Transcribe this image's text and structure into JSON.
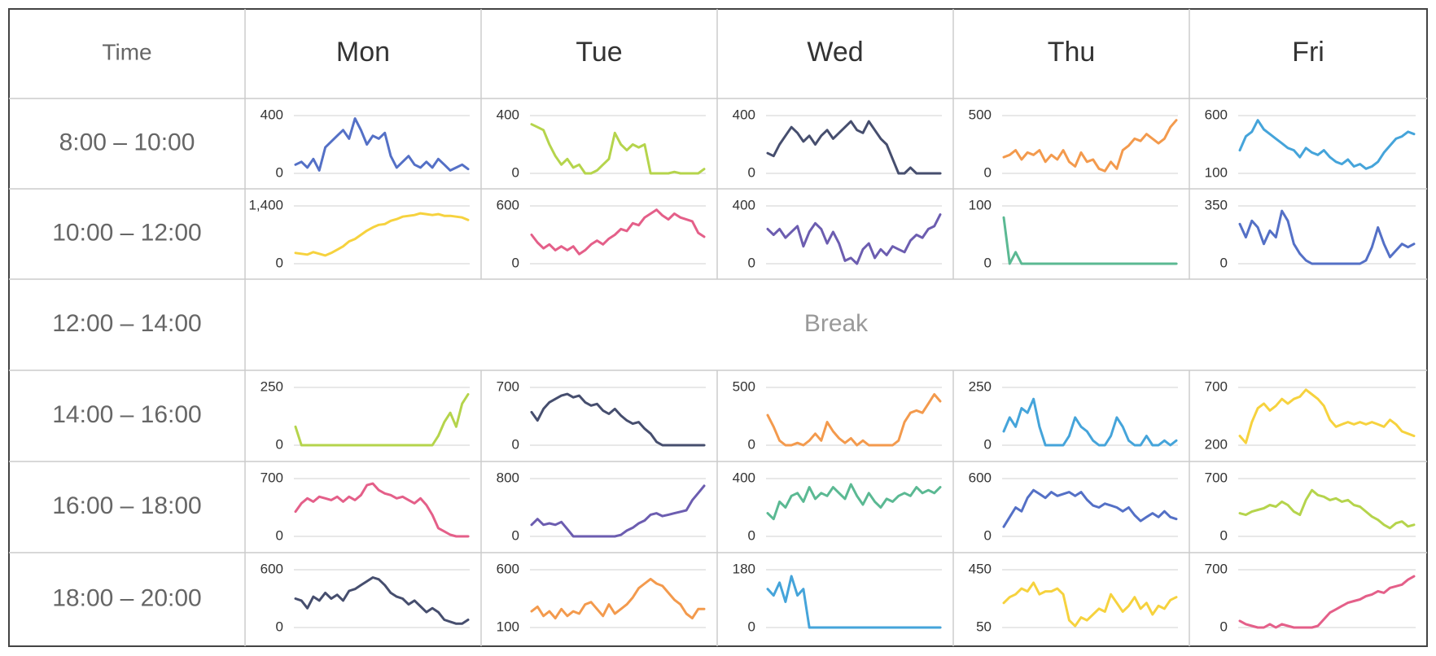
{
  "header": {
    "time": "Time",
    "days": [
      "Mon",
      "Tue",
      "Wed",
      "Thu",
      "Fri"
    ]
  },
  "slots": [
    "8:00 – 10:00",
    "10:00 – 12:00",
    "12:00 – 14:00",
    "14:00 – 16:00",
    "16:00 – 18:00",
    "18:00 – 20:00"
  ],
  "break_label": "Break",
  "break_slot_index": 2,
  "chart_data": {
    "type": "line",
    "layout": "small-multiples grid",
    "grid": "horizontal gridlines at min and max",
    "cells": [
      {
        "day": "Mon",
        "slot": "8:00 – 10:00",
        "color": "#5470c6",
        "ylim": [
          0,
          400
        ],
        "y_tick_labels": [
          "0",
          "400"
        ],
        "values": [
          60,
          80,
          40,
          100,
          20,
          180,
          220,
          260,
          300,
          240,
          380,
          300,
          200,
          260,
          240,
          280,
          120,
          40,
          80,
          120,
          60,
          40,
          80,
          40,
          100,
          60,
          20,
          40,
          60,
          30
        ]
      },
      {
        "day": "Tue",
        "slot": "8:00 – 10:00",
        "color": "#b5d44c",
        "ylim": [
          0,
          400
        ],
        "y_tick_labels": [
          "0",
          "400"
        ],
        "values": [
          340,
          320,
          300,
          200,
          120,
          60,
          100,
          40,
          60,
          0,
          0,
          20,
          60,
          100,
          280,
          200,
          160,
          200,
          180,
          200,
          0,
          0,
          0,
          0,
          10,
          0,
          0,
          0,
          0,
          30
        ]
      },
      {
        "day": "Wed",
        "slot": "8:00 – 10:00",
        "color": "#464e6e",
        "ylim": [
          0,
          400
        ],
        "y_tick_labels": [
          "0",
          "400"
        ],
        "values": [
          140,
          120,
          200,
          260,
          320,
          280,
          220,
          260,
          200,
          260,
          300,
          240,
          280,
          320,
          360,
          300,
          280,
          360,
          300,
          240,
          200,
          100,
          0,
          0,
          40,
          0,
          0,
          0,
          0,
          0
        ]
      },
      {
        "day": "Thu",
        "slot": "8:00 – 10:00",
        "color": "#f39a4d",
        "ylim": [
          0,
          500
        ],
        "y_tick_labels": [
          "0",
          "500"
        ],
        "values": [
          140,
          160,
          200,
          120,
          180,
          160,
          200,
          100,
          160,
          120,
          200,
          100,
          60,
          180,
          100,
          120,
          40,
          20,
          100,
          40,
          200,
          240,
          300,
          280,
          340,
          300,
          260,
          300,
          400,
          460
        ]
      },
      {
        "day": "Fri",
        "slot": "8:00 – 10:00",
        "color": "#45a4da",
        "ylim": [
          100,
          600
        ],
        "y_tick_labels": [
          "100",
          "600"
        ],
        "values": [
          300,
          420,
          460,
          560,
          480,
          440,
          400,
          360,
          320,
          300,
          240,
          320,
          280,
          260,
          300,
          240,
          200,
          180,
          220,
          160,
          180,
          140,
          160,
          200,
          280,
          340,
          400,
          420,
          460,
          440
        ]
      },
      {
        "day": "Mon",
        "slot": "10:00 – 12:00",
        "color": "#f6d23e",
        "ylim": [
          0,
          1400
        ],
        "y_tick_labels": [
          "0",
          "1,400"
        ],
        "values": [
          260,
          240,
          220,
          280,
          240,
          200,
          260,
          340,
          420,
          540,
          600,
          700,
          800,
          880,
          940,
          960,
          1040,
          1080,
          1140,
          1160,
          1180,
          1220,
          1200,
          1180,
          1200,
          1160,
          1160,
          1140,
          1120,
          1060
        ]
      },
      {
        "day": "Tue",
        "slot": "10:00 – 12:00",
        "color": "#e45f89",
        "ylim": [
          0,
          600
        ],
        "y_tick_labels": [
          "0",
          "600"
        ],
        "values": [
          300,
          220,
          160,
          200,
          140,
          180,
          140,
          180,
          100,
          140,
          200,
          240,
          200,
          260,
          300,
          360,
          340,
          420,
          400,
          480,
          520,
          560,
          500,
          460,
          520,
          480,
          460,
          440,
          320,
          280
        ]
      },
      {
        "day": "Wed",
        "slot": "10:00 – 12:00",
        "color": "#6c5db0",
        "ylim": [
          0,
          400
        ],
        "y_tick_labels": [
          "0",
          "400"
        ],
        "values": [
          240,
          200,
          240,
          180,
          220,
          260,
          120,
          220,
          280,
          240,
          140,
          220,
          140,
          20,
          40,
          0,
          100,
          140,
          40,
          100,
          60,
          120,
          100,
          80,
          160,
          200,
          180,
          240,
          260,
          340
        ]
      },
      {
        "day": "Thu",
        "slot": "10:00 – 12:00",
        "color": "#5bb993",
        "ylim": [
          0,
          100
        ],
        "y_tick_labels": [
          "0",
          "100"
        ],
        "values": [
          80,
          0,
          20,
          0,
          0,
          0,
          0,
          0,
          0,
          0,
          0,
          0,
          0,
          0,
          0,
          0,
          0,
          0,
          0,
          0,
          0,
          0,
          0,
          0,
          0,
          0,
          0,
          0,
          0,
          0
        ]
      },
      {
        "day": "Fri",
        "slot": "10:00 – 12:00",
        "color": "#5470c6",
        "ylim": [
          0,
          350
        ],
        "y_tick_labels": [
          "0",
          "350"
        ],
        "values": [
          240,
          160,
          260,
          220,
          120,
          200,
          160,
          320,
          260,
          120,
          60,
          20,
          0,
          0,
          0,
          0,
          0,
          0,
          0,
          0,
          0,
          20,
          100,
          220,
          120,
          40,
          80,
          120,
          100,
          120
        ]
      },
      {
        "day": "Mon",
        "slot": "14:00 – 16:00",
        "color": "#b5d44c",
        "ylim": [
          0,
          250
        ],
        "y_tick_labels": [
          "0",
          "250"
        ],
        "values": [
          80,
          0,
          0,
          0,
          0,
          0,
          0,
          0,
          0,
          0,
          0,
          0,
          0,
          0,
          0,
          0,
          0,
          0,
          0,
          0,
          0,
          0,
          0,
          0,
          40,
          100,
          140,
          80,
          180,
          220
        ]
      },
      {
        "day": "Tue",
        "slot": "14:00 – 16:00",
        "color": "#464e6e",
        "ylim": [
          0,
          700
        ],
        "y_tick_labels": [
          "0",
          "700"
        ],
        "values": [
          400,
          300,
          440,
          520,
          560,
          600,
          620,
          580,
          600,
          520,
          480,
          500,
          420,
          380,
          440,
          360,
          300,
          260,
          280,
          200,
          140,
          40,
          0,
          0,
          0,
          0,
          0,
          0,
          0,
          0
        ]
      },
      {
        "day": "Wed",
        "slot": "14:00 – 16:00",
        "color": "#f39a4d",
        "ylim": [
          0,
          500
        ],
        "y_tick_labels": [
          "0",
          "500"
        ],
        "values": [
          260,
          160,
          40,
          0,
          0,
          20,
          0,
          40,
          100,
          40,
          200,
          120,
          60,
          20,
          60,
          0,
          40,
          0,
          0,
          0,
          0,
          0,
          40,
          200,
          280,
          300,
          280,
          360,
          440,
          380
        ]
      },
      {
        "day": "Thu",
        "slot": "14:00 – 16:00",
        "color": "#45a4da",
        "ylim": [
          0,
          250
        ],
        "y_tick_labels": [
          "0",
          "250"
        ],
        "values": [
          60,
          120,
          80,
          160,
          140,
          200,
          80,
          0,
          0,
          0,
          0,
          40,
          120,
          80,
          60,
          20,
          0,
          0,
          40,
          120,
          80,
          20,
          0,
          0,
          40,
          0,
          0,
          20,
          0,
          20
        ]
      },
      {
        "day": "Fri",
        "slot": "14:00 – 16:00",
        "color": "#f6d23e",
        "ylim": [
          200,
          700
        ],
        "y_tick_labels": [
          "200",
          "700"
        ],
        "values": [
          280,
          220,
          400,
          520,
          560,
          500,
          540,
          600,
          560,
          600,
          620,
          680,
          640,
          600,
          540,
          420,
          360,
          380,
          400,
          380,
          400,
          380,
          400,
          380,
          360,
          420,
          380,
          320,
          300,
          280
        ]
      },
      {
        "day": "Mon",
        "slot": "16:00 – 18:00",
        "color": "#e45f89",
        "ylim": [
          0,
          700
        ],
        "y_tick_labels": [
          "0",
          "700"
        ],
        "values": [
          300,
          400,
          460,
          420,
          480,
          460,
          440,
          480,
          420,
          480,
          440,
          500,
          620,
          640,
          560,
          520,
          500,
          460,
          480,
          440,
          400,
          460,
          380,
          260,
          100,
          60,
          20,
          0,
          0,
          0
        ]
      },
      {
        "day": "Tue",
        "slot": "16:00 – 18:00",
        "color": "#6c5db0",
        "ylim": [
          0,
          800
        ],
        "y_tick_labels": [
          "0",
          "800"
        ],
        "values": [
          160,
          240,
          160,
          180,
          160,
          200,
          100,
          0,
          0,
          0,
          0,
          0,
          0,
          0,
          0,
          20,
          80,
          120,
          180,
          220,
          300,
          320,
          280,
          300,
          320,
          340,
          360,
          500,
          600,
          700
        ]
      },
      {
        "day": "Wed",
        "slot": "16:00 – 18:00",
        "color": "#5bb993",
        "ylim": [
          0,
          400
        ],
        "y_tick_labels": [
          "0",
          "400"
        ],
        "values": [
          160,
          120,
          240,
          200,
          280,
          300,
          240,
          340,
          260,
          300,
          280,
          340,
          300,
          260,
          360,
          280,
          220,
          300,
          240,
          200,
          260,
          240,
          280,
          300,
          280,
          340,
          300,
          320,
          300,
          340
        ]
      },
      {
        "day": "Thu",
        "slot": "16:00 – 18:00",
        "color": "#5470c6",
        "ylim": [
          0,
          600
        ],
        "y_tick_labels": [
          "0",
          "600"
        ],
        "values": [
          100,
          200,
          300,
          260,
          400,
          480,
          440,
          400,
          460,
          420,
          440,
          460,
          420,
          460,
          380,
          320,
          300,
          340,
          320,
          300,
          260,
          300,
          220,
          160,
          200,
          240,
          200,
          260,
          200,
          180
        ]
      },
      {
        "day": "Fri",
        "slot": "16:00 – 18:00",
        "color": "#b5d44c",
        "ylim": [
          0,
          700
        ],
        "y_tick_labels": [
          "0",
          "700"
        ],
        "values": [
          280,
          260,
          300,
          320,
          340,
          380,
          360,
          420,
          380,
          300,
          260,
          440,
          560,
          500,
          480,
          440,
          460,
          420,
          440,
          380,
          360,
          300,
          240,
          200,
          140,
          100,
          160,
          180,
          120,
          140
        ]
      },
      {
        "day": "Mon",
        "slot": "18:00 – 20:00",
        "color": "#464e6e",
        "ylim": [
          0,
          600
        ],
        "y_tick_labels": [
          "0",
          "600"
        ],
        "values": [
          300,
          280,
          200,
          320,
          280,
          360,
          300,
          340,
          280,
          380,
          400,
          440,
          480,
          520,
          500,
          440,
          360,
          320,
          300,
          240,
          280,
          220,
          160,
          200,
          160,
          80,
          60,
          40,
          40,
          80
        ]
      },
      {
        "day": "Tue",
        "slot": "18:00 – 20:00",
        "color": "#f39a4d",
        "ylim": [
          100,
          600
        ],
        "y_tick_labels": [
          "100",
          "600"
        ],
        "values": [
          240,
          280,
          200,
          240,
          180,
          260,
          200,
          240,
          220,
          300,
          320,
          260,
          200,
          300,
          220,
          260,
          300,
          360,
          440,
          480,
          520,
          480,
          460,
          400,
          340,
          300,
          220,
          180,
          260,
          260
        ]
      },
      {
        "day": "Wed",
        "slot": "18:00 – 20:00",
        "color": "#45a4da",
        "ylim": [
          0,
          180
        ],
        "y_tick_labels": [
          "0",
          "180"
        ],
        "values": [
          120,
          100,
          140,
          80,
          160,
          100,
          120,
          0,
          0,
          0,
          0,
          0,
          0,
          0,
          0,
          0,
          0,
          0,
          0,
          0,
          0,
          0,
          0,
          0,
          0,
          0,
          0,
          0,
          0,
          0
        ]
      },
      {
        "day": "Thu",
        "slot": "18:00 – 20:00",
        "color": "#f6d23e",
        "ylim": [
          50,
          450
        ],
        "y_tick_labels": [
          "50",
          "450"
        ],
        "values": [
          220,
          260,
          280,
          320,
          300,
          360,
          280,
          300,
          300,
          320,
          280,
          100,
          60,
          120,
          100,
          140,
          180,
          160,
          280,
          220,
          160,
          200,
          260,
          180,
          220,
          140,
          200,
          180,
          240,
          260
        ]
      },
      {
        "day": "Fri",
        "slot": "18:00 – 20:00",
        "color": "#e45f89",
        "ylim": [
          0,
          700
        ],
        "y_tick_labels": [
          "0",
          "700"
        ],
        "values": [
          80,
          40,
          20,
          0,
          0,
          40,
          0,
          40,
          20,
          0,
          0,
          0,
          0,
          20,
          100,
          180,
          220,
          260,
          300,
          320,
          340,
          380,
          400,
          440,
          420,
          480,
          500,
          520,
          580,
          620
        ]
      }
    ]
  }
}
